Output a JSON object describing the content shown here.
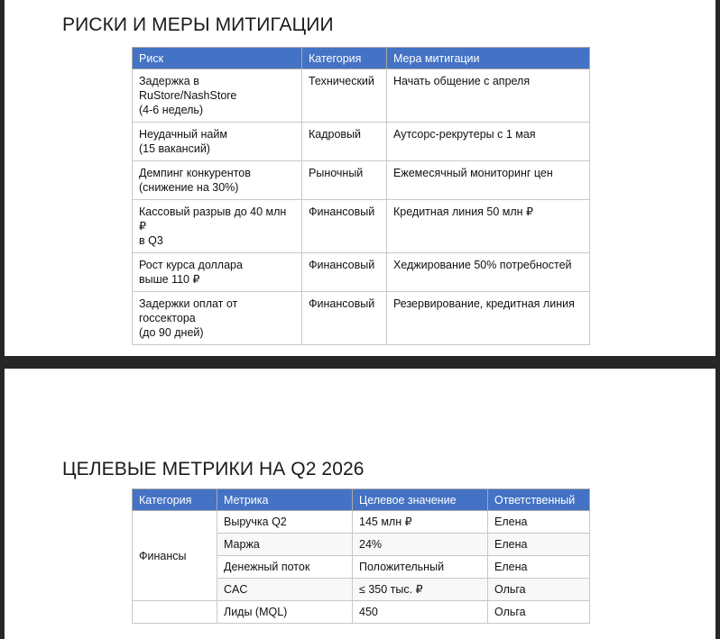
{
  "risks": {
    "title": "РИСКИ И МЕРЫ МИТИГАЦИИ",
    "headers": [
      "Риск",
      "Категория",
      "Мера митигации"
    ],
    "rows": [
      {
        "risk_l1": "Задержка в RuStore/NashStore",
        "risk_l2": "(4-6 недель)",
        "category": "Технический",
        "mitigation": "Начать общение с апреля"
      },
      {
        "risk_l1": "Неудачный найм",
        "risk_l2": "(15 вакансий)",
        "category": "Кадровый",
        "mitigation": "Аутсорс-рекрутеры с 1 мая"
      },
      {
        "risk_l1": "Демпинг конкурентов",
        "risk_l2": "(снижение на 30%)",
        "category": "Рыночный",
        "mitigation": "Ежемесячный мониторинг цен"
      },
      {
        "risk_l1": "Кассовый разрыв до 40 млн ₽",
        "risk_l2": "в Q3",
        "category": "Финансовый",
        "mitigation": "Кредитная линия 50 млн ₽"
      },
      {
        "risk_l1": "Рост курса доллара",
        "risk_l2": "выше 110 ₽",
        "category": "Финансовый",
        "mitigation": "Хеджирование 50% потребностей"
      },
      {
        "risk_l1": "Задержки оплат от госсектора",
        "risk_l2": "(до 90 дней)",
        "category": "Финансовый",
        "mitigation": "Резервирование, кредитная линия"
      }
    ]
  },
  "metrics": {
    "title": "ЦЕЛЕВЫЕ МЕТРИКИ НА Q2 2026",
    "headers": [
      "Категория",
      "Метрика",
      "Целевое значение",
      "Ответственный"
    ],
    "group1": "Финансы",
    "rows": [
      {
        "metric": "Выручка Q2",
        "target": "145 млн ₽",
        "owner": "Елена"
      },
      {
        "metric": "Маржа",
        "target": "24%",
        "owner": "Елена"
      },
      {
        "metric": "Денежный поток",
        "target": "Положительный",
        "owner": "Елена"
      },
      {
        "metric": "CAC",
        "target": "≤ 350 тыс. ₽",
        "owner": "Ольга"
      },
      {
        "metric": "Лиды (MQL)",
        "target": "450",
        "owner": "Ольга"
      }
    ]
  }
}
